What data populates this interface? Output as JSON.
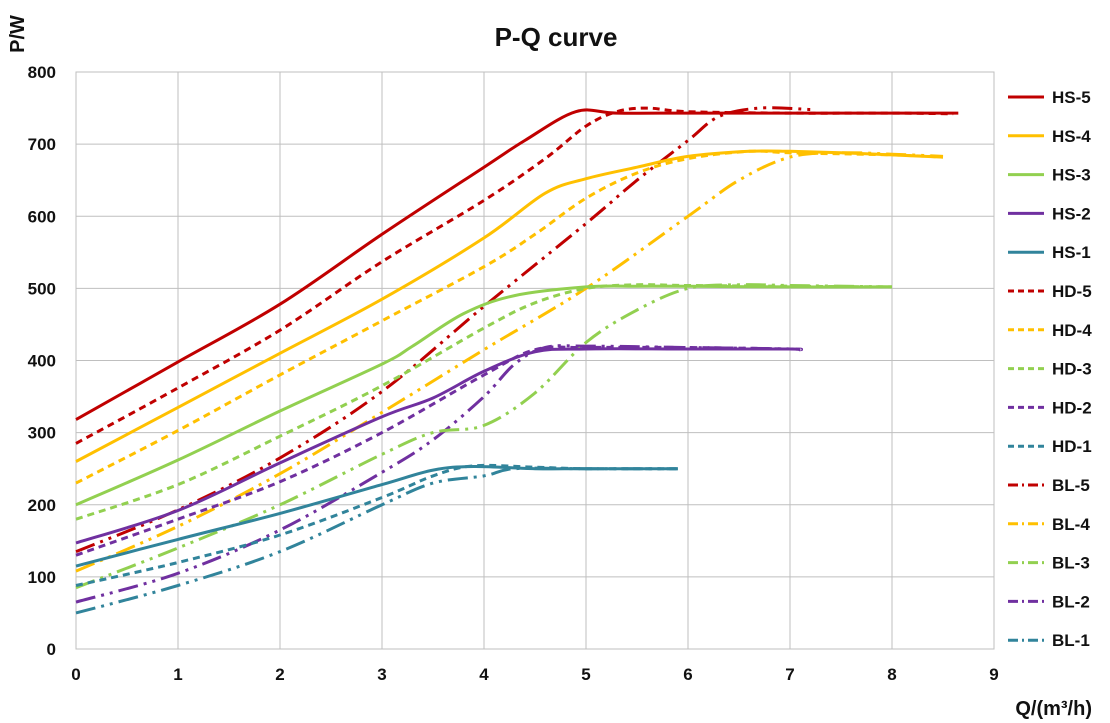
{
  "chart_data": {
    "type": "line",
    "title": "P-Q  curve",
    "xlabel": "Q/(m³/h)",
    "ylabel": "P/W",
    "xlim": [
      0,
      9
    ],
    "ylim": [
      0,
      800
    ],
    "xticks": [
      "0",
      "1",
      "2",
      "3",
      "4",
      "5",
      "6",
      "7",
      "8",
      "9"
    ],
    "yticks": [
      "0",
      "100",
      "200",
      "300",
      "400",
      "500",
      "600",
      "700",
      "800"
    ],
    "grid": true,
    "legend_position": "right",
    "series": [
      {
        "name": "HS-5",
        "color": "#c00000",
        "style": "solid",
        "x": [
          0,
          1,
          2,
          3,
          4,
          4.4,
          4.9,
          5.3,
          6,
          7,
          8,
          8.65
        ],
        "y": [
          318,
          398,
          478,
          575,
          668,
          705,
          745,
          743,
          743,
          743,
          743,
          743
        ]
      },
      {
        "name": "HS-4",
        "color": "#ffc000",
        "style": "solid",
        "x": [
          0,
          1,
          2,
          3,
          4,
          4.6,
          5,
          5.5,
          6,
          6.6,
          7,
          7.5,
          8,
          8.5
        ],
        "y": [
          260,
          335,
          410,
          485,
          570,
          632,
          652,
          668,
          683,
          690,
          690,
          688,
          685,
          682
        ]
      },
      {
        "name": "HS-3",
        "color": "#92d050",
        "style": "solid",
        "x": [
          0,
          1,
          2,
          3,
          3.3,
          3.8,
          4.3,
          5,
          5.5,
          6,
          7,
          8
        ],
        "y": [
          200,
          262,
          330,
          395,
          420,
          465,
          490,
          502,
          503,
          503,
          502,
          502
        ]
      },
      {
        "name": "HS-2",
        "color": "#7030a0",
        "style": "solid",
        "x": [
          0,
          1,
          2,
          3,
          3.5,
          4,
          4.5,
          5,
          6,
          7,
          7.1
        ],
        "y": [
          147,
          192,
          258,
          322,
          348,
          385,
          412,
          416,
          416,
          416,
          415
        ]
      },
      {
        "name": "HS-1",
        "color": "#31849b",
        "style": "solid",
        "x": [
          0,
          1,
          2,
          3,
          3.5,
          3.9,
          4.5,
          5,
          5.9
        ],
        "y": [
          115,
          152,
          188,
          228,
          248,
          253,
          250,
          250,
          250
        ]
      },
      {
        "name": "HD-5",
        "color": "#c00000",
        "style": "dash",
        "x": [
          0,
          1,
          2,
          3,
          4,
          4.6,
          5,
          5.3,
          5.6,
          6,
          7,
          8,
          8.6
        ],
        "y": [
          285,
          362,
          442,
          537,
          622,
          680,
          725,
          745,
          750,
          745,
          743,
          743,
          742
        ]
      },
      {
        "name": "HD-4",
        "color": "#ffc000",
        "style": "dash",
        "x": [
          0,
          1,
          2,
          3,
          4,
          4.5,
          5,
          5.5,
          6,
          6.6,
          7,
          8,
          8.5
        ],
        "y": [
          230,
          303,
          380,
          455,
          530,
          575,
          625,
          660,
          680,
          690,
          688,
          685,
          682
        ]
      },
      {
        "name": "HD-3",
        "color": "#92d050",
        "style": "dash",
        "x": [
          0,
          1,
          2,
          3,
          4,
          4.5,
          5,
          5.5,
          6,
          7,
          8
        ],
        "y": [
          180,
          228,
          295,
          365,
          445,
          480,
          500,
          505,
          504,
          503,
          502
        ]
      },
      {
        "name": "HD-2",
        "color": "#7030a0",
        "style": "dash",
        "x": [
          0,
          1,
          2,
          3,
          4,
          4.5,
          5,
          6,
          7,
          7.1
        ],
        "y": [
          130,
          180,
          232,
          300,
          380,
          415,
          418,
          418,
          416,
          415
        ]
      },
      {
        "name": "HD-1",
        "color": "#31849b",
        "style": "dash",
        "x": [
          0,
          1,
          2,
          3,
          3.5,
          3.9,
          4.5,
          5,
          5.9
        ],
        "y": [
          88,
          120,
          158,
          210,
          240,
          254,
          252,
          250,
          250
        ]
      },
      {
        "name": "BL-5",
        "color": "#c00000",
        "style": "dashdotdot",
        "x": [
          0,
          1,
          2,
          3,
          4,
          5,
          5.5,
          6,
          6.3,
          6.7,
          7.2
        ],
        "y": [
          135,
          193,
          265,
          357,
          475,
          590,
          650,
          705,
          738,
          750,
          748
        ]
      },
      {
        "name": "BL-4",
        "color": "#ffc000",
        "style": "dashdotdot",
        "x": [
          0,
          1,
          2,
          3,
          4,
          5,
          6,
          6.5,
          7,
          7.5,
          8,
          8.5
        ],
        "y": [
          108,
          170,
          243,
          328,
          415,
          500,
          600,
          650,
          682,
          688,
          686,
          683
        ]
      },
      {
        "name": "BL-3",
        "color": "#92d050",
        "style": "dashdotdot",
        "x": [
          0,
          1,
          2,
          3,
          3.5,
          4,
          4.5,
          5,
          5.5,
          6,
          6.5,
          7,
          8
        ],
        "y": [
          85,
          140,
          200,
          270,
          300,
          310,
          355,
          425,
          470,
          500,
          505,
          504,
          502
        ]
      },
      {
        "name": "BL-2",
        "color": "#7030a0",
        "style": "dashdotdot",
        "x": [
          0,
          1,
          2,
          3,
          3.5,
          4,
          4.3,
          4.6,
          5,
          6,
          7,
          7.1
        ],
        "y": [
          65,
          105,
          165,
          245,
          290,
          350,
          395,
          418,
          420,
          418,
          416,
          415
        ]
      },
      {
        "name": "BL-1",
        "color": "#31849b",
        "style": "dashdotdot",
        "x": [
          0,
          1,
          2,
          3,
          3.5,
          4,
          4.3,
          5,
          5.9
        ],
        "y": [
          50,
          88,
          135,
          200,
          230,
          240,
          250,
          250,
          250
        ]
      }
    ]
  }
}
